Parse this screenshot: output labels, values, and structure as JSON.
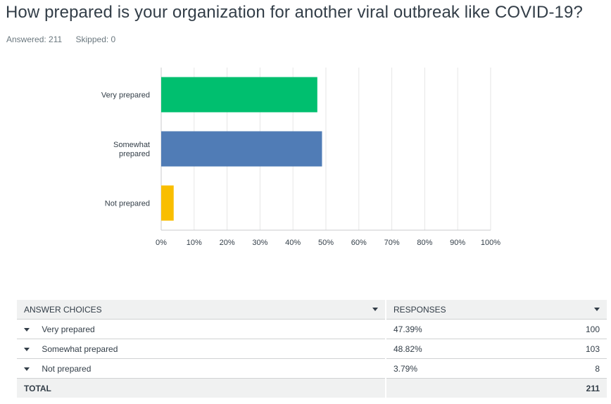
{
  "question": {
    "title": "How prepared is your organization for another viral outbreak like COVID-19?",
    "answered_label": "Answered: 211",
    "skipped_label": "Skipped: 0"
  },
  "chart_data": {
    "type": "bar",
    "orientation": "horizontal",
    "categories": [
      "Very prepared",
      "Somewhat prepared",
      "Not prepared"
    ],
    "category_lines": [
      [
        "Very prepared"
      ],
      [
        "Somewhat",
        "prepared"
      ],
      [
        "Not prepared"
      ]
    ],
    "values": [
      47.39,
      48.82,
      3.79
    ],
    "colors": [
      "#00bf6f",
      "#507cb6",
      "#f9be00"
    ],
    "xlim": [
      0,
      100
    ],
    "xticks": [
      "0%",
      "10%",
      "20%",
      "30%",
      "40%",
      "50%",
      "60%",
      "70%",
      "80%",
      "90%",
      "100%"
    ],
    "grid": true,
    "legend": "none"
  },
  "table": {
    "headers": {
      "choices": "ANSWER CHOICES",
      "responses": "RESPONSES"
    },
    "rows": [
      {
        "choice": "Very prepared",
        "percent": "47.39%",
        "count": "100"
      },
      {
        "choice": "Somewhat prepared",
        "percent": "48.82%",
        "count": "103"
      },
      {
        "choice": "Not prepared",
        "percent": "3.79%",
        "count": "8"
      }
    ],
    "total": {
      "label": "TOTAL",
      "count": "211"
    }
  }
}
